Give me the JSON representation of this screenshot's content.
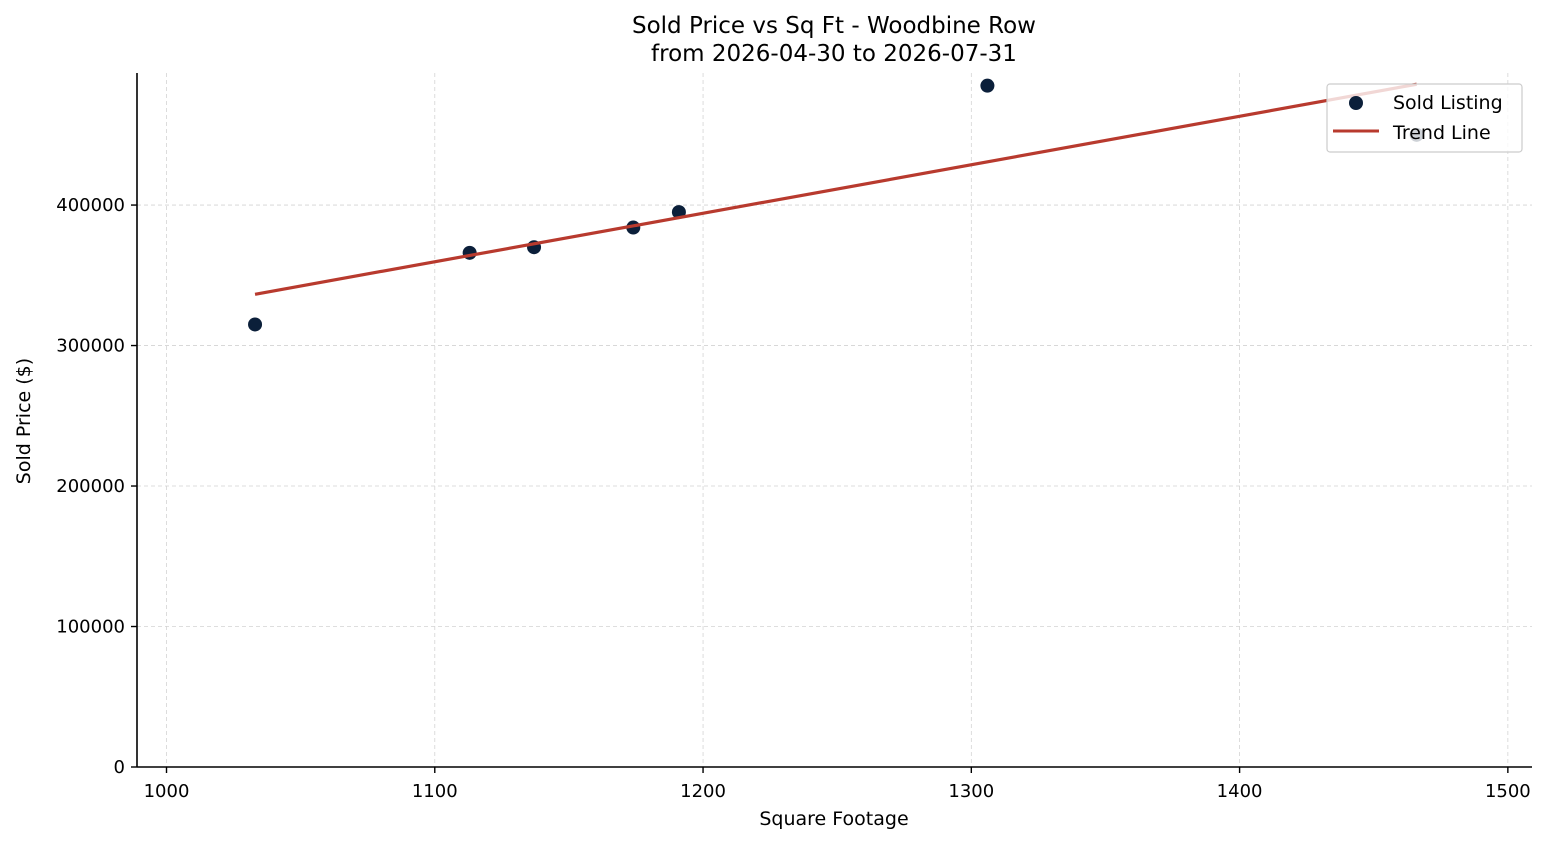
{
  "chart_data": {
    "type": "scatter",
    "title": "Sold Price vs Sq Ft - Woodbine Row",
    "subtitle": "from 2026-04-30 to 2026-07-31",
    "xlabel": "Square Footage",
    "ylabel": "Sold Price ($)",
    "xlim": [
      989,
      1509
    ],
    "ylim": [
      0,
      494000
    ],
    "xticks": [
      1000,
      1100,
      1200,
      1300,
      1400,
      1500
    ],
    "yticks": [
      0,
      100000,
      200000,
      300000,
      400000
    ],
    "xtick_labels": [
      "1000",
      "1100",
      "1200",
      "1300",
      "1400",
      "1500"
    ],
    "ytick_labels": [
      "0",
      "100000",
      "200000",
      "300000",
      "400000"
    ],
    "grid": true,
    "legend_position": "top-right",
    "series": [
      {
        "name": "Sold Listing",
        "kind": "scatter",
        "color": "#0b1f3a",
        "points": [
          {
            "x": 1033,
            "y": 315000
          },
          {
            "x": 1113,
            "y": 366000
          },
          {
            "x": 1137,
            "y": 370000
          },
          {
            "x": 1174,
            "y": 384000
          },
          {
            "x": 1191,
            "y": 395000
          },
          {
            "x": 1306,
            "y": 485000
          },
          {
            "x": 1466,
            "y": 450000
          }
        ]
      },
      {
        "name": "Trend Line",
        "kind": "line",
        "color": "#b83a2e",
        "points": [
          {
            "x": 1033,
            "y": 336500
          },
          {
            "x": 1466,
            "y": 486000
          }
        ]
      }
    ]
  }
}
